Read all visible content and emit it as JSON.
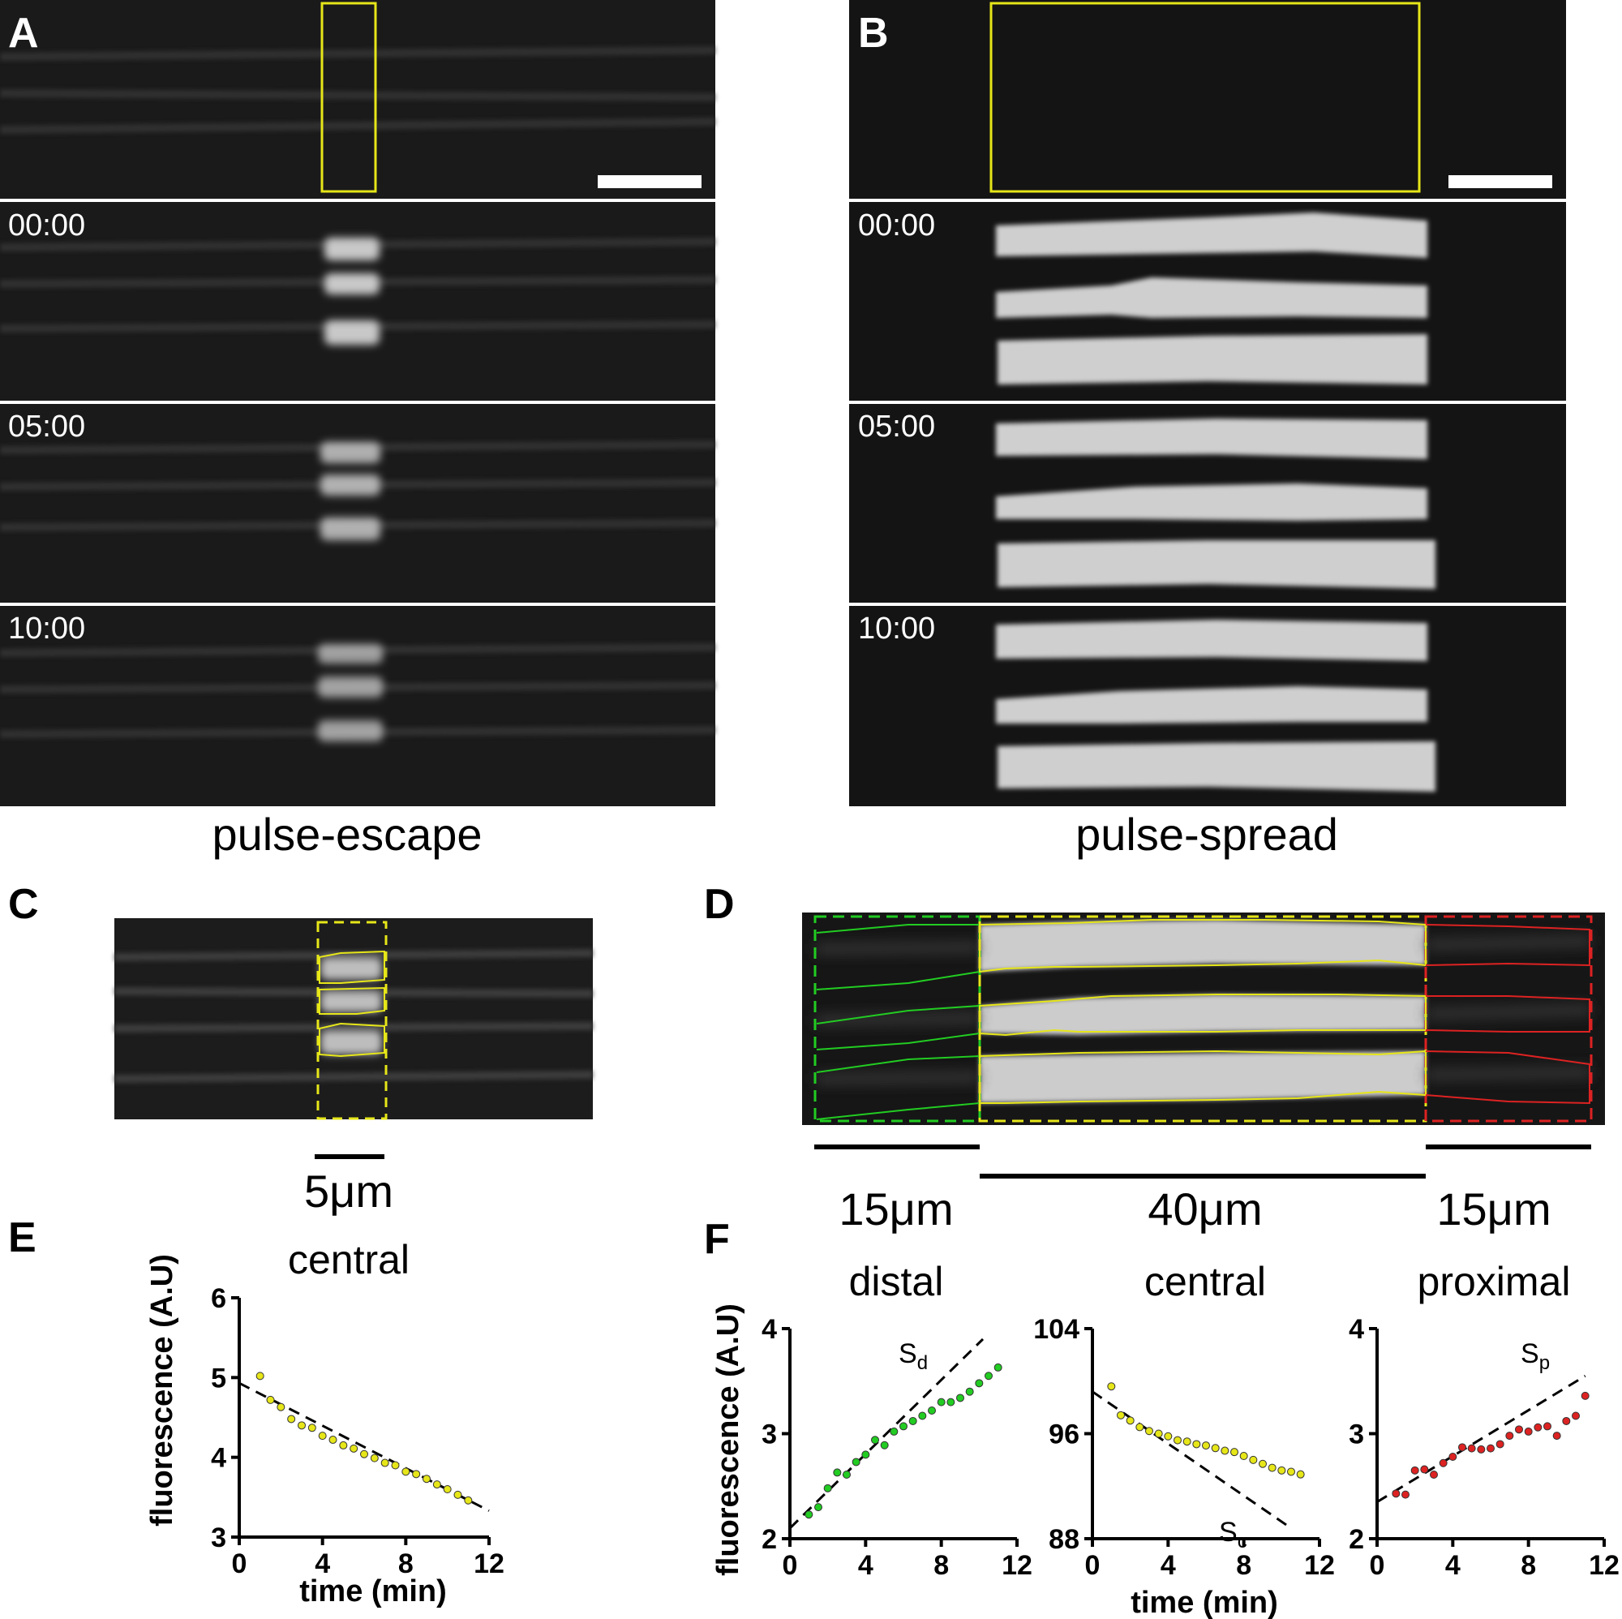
{
  "panels": {
    "A": {
      "label": "A",
      "caption": "pulse-escape",
      "timestamps": [
        "00:00",
        "05:00",
        "10:00"
      ]
    },
    "B": {
      "label": "B",
      "caption": "pulse-spread",
      "timestamps": [
        "00:00",
        "05:00",
        "10:00"
      ]
    },
    "C": {
      "label": "C",
      "scale_label": "5μm"
    },
    "D": {
      "label": "D",
      "segments": [
        "15μm",
        "40μm",
        "15μm"
      ]
    },
    "E": {
      "label": "E",
      "title": "central"
    },
    "F": {
      "label": "F",
      "titles": [
        "distal",
        "central",
        "proximal"
      ]
    }
  },
  "annotations": {
    "Sd": {
      "main": "S",
      "sub": "d"
    },
    "Sc": {
      "main": "S",
      "sub": "c"
    },
    "Sp": {
      "main": "S",
      "sub": "p"
    }
  },
  "axis_labels": {
    "x": "time (min)",
    "y": "fluorescence (A.U)"
  },
  "colors": {
    "roi": "#e6e619",
    "distal": "#22cc22",
    "central": "#e6e619",
    "proximal": "#dd2222",
    "micrograph": "#1a1a1a",
    "band": "#d2d2d2"
  },
  "chart_data": [
    {
      "type": "scatter",
      "panel": "E",
      "title": "central",
      "xlabel": "time (min)",
      "ylabel": "fluorescence (A.U)",
      "xlim": [
        0,
        12
      ],
      "ylim": [
        3,
        6
      ],
      "xticks": [
        0,
        4,
        8,
        12
      ],
      "yticks": [
        3,
        4,
        5,
        6
      ],
      "color": "#e6e619",
      "x": [
        1.0,
        1.5,
        2.0,
        2.5,
        3.0,
        3.5,
        4.0,
        4.5,
        5.0,
        5.5,
        6.0,
        6.5,
        7.0,
        7.5,
        8.0,
        8.5,
        9.0,
        9.5,
        10.0,
        10.5,
        11.0
      ],
      "y": [
        5.02,
        4.72,
        4.63,
        4.48,
        4.4,
        4.37,
        4.27,
        4.22,
        4.15,
        4.11,
        4.04,
        3.99,
        3.93,
        3.9,
        3.82,
        3.79,
        3.73,
        3.66,
        3.6,
        3.53,
        3.46
      ],
      "fit": {
        "style": "dashed",
        "x": [
          0,
          12
        ],
        "y": [
          4.93,
          3.33
        ]
      }
    },
    {
      "type": "scatter",
      "panel": "F",
      "title": "distal",
      "xlabel": "",
      "ylabel": "fluorescence (A.U)",
      "xlim": [
        0,
        12
      ],
      "ylim": [
        2,
        4
      ],
      "xticks": [
        0,
        4,
        8,
        12
      ],
      "yticks": [
        2,
        3,
        4
      ],
      "color": "#22cc22",
      "x": [
        1.0,
        1.5,
        2.0,
        2.5,
        3.0,
        3.5,
        4.0,
        4.5,
        5.0,
        5.5,
        6.0,
        6.5,
        7.0,
        7.5,
        8.0,
        8.5,
        9.0,
        9.5,
        10.0,
        10.5,
        11.0
      ],
      "y": [
        2.23,
        2.3,
        2.48,
        2.63,
        2.61,
        2.73,
        2.8,
        2.94,
        2.89,
        3.02,
        3.07,
        3.12,
        3.17,
        3.22,
        3.3,
        3.3,
        3.34,
        3.4,
        3.48,
        3.55,
        3.63
      ],
      "fit": {
        "style": "dashed",
        "x": [
          0,
          10.2
        ],
        "y": [
          2.1,
          3.9
        ]
      }
    },
    {
      "type": "scatter",
      "panel": "F",
      "title": "central",
      "xlabel": "time (min)",
      "ylabel": "",
      "xlim": [
        0,
        12
      ],
      "ylim": [
        88,
        104
      ],
      "xticks": [
        0,
        4,
        8,
        12
      ],
      "yticks": [
        88,
        96,
        104
      ],
      "color": "#e6e619",
      "x": [
        1.0,
        1.5,
        2.0,
        2.5,
        3.0,
        3.5,
        4.0,
        4.5,
        5.0,
        5.5,
        6.0,
        6.5,
        7.0,
        7.5,
        8.0,
        8.5,
        9.0,
        9.5,
        10.0,
        10.5,
        11.0
      ],
      "y": [
        99.6,
        97.4,
        97.0,
        96.5,
        96.2,
        96.0,
        95.8,
        95.5,
        95.4,
        95.2,
        95.1,
        94.9,
        94.7,
        94.6,
        94.3,
        94.0,
        93.7,
        93.4,
        93.2,
        93.1,
        92.9
      ],
      "fit": {
        "style": "dashed",
        "x": [
          0,
          10.5
        ],
        "y": [
          99.2,
          88.8
        ]
      }
    },
    {
      "type": "scatter",
      "panel": "F",
      "title": "proximal",
      "xlabel": "",
      "ylabel": "",
      "xlim": [
        0,
        12
      ],
      "ylim": [
        2,
        4
      ],
      "xticks": [
        0,
        4,
        8,
        12
      ],
      "yticks": [
        2,
        3,
        4
      ],
      "color": "#dd2222",
      "x": [
        1.0,
        1.5,
        2.0,
        2.5,
        3.0,
        3.5,
        4.0,
        4.5,
        5.0,
        5.5,
        6.0,
        6.5,
        7.0,
        7.5,
        8.0,
        8.5,
        9.0,
        9.5,
        10.0,
        10.5,
        11.0
      ],
      "y": [
        2.43,
        2.42,
        2.65,
        2.66,
        2.61,
        2.72,
        2.78,
        2.87,
        2.86,
        2.85,
        2.86,
        2.9,
        2.98,
        3.04,
        3.02,
        3.06,
        3.07,
        2.98,
        3.12,
        3.17,
        3.36
      ],
      "fit": {
        "style": "dashed",
        "x": [
          0,
          11
        ],
        "y": [
          2.35,
          3.55
        ]
      }
    }
  ]
}
